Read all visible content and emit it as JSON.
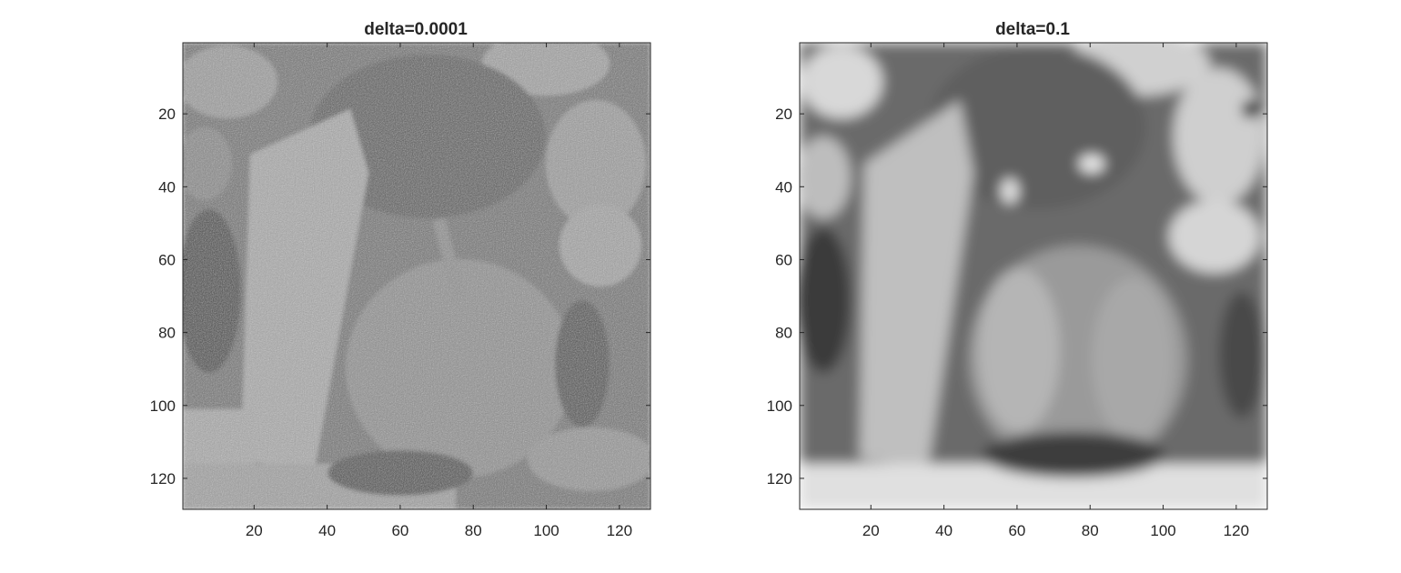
{
  "chart_data": [
    {
      "type": "heatmap",
      "title": "delta=0.0001",
      "xlabel": "",
      "ylabel": "",
      "xlim": [
        0.5,
        128.5
      ],
      "ylim": [
        0.5,
        128.5
      ],
      "y_direction": "reverse",
      "colormap": "gray",
      "grid": false,
      "x_ticks": [
        20,
        40,
        60,
        80,
        100,
        120
      ],
      "y_ticks": [
        20,
        40,
        60,
        80,
        100,
        120
      ],
      "image": "noisy grayscale photograph of peppers (128x128), strong speckle noise"
    },
    {
      "type": "heatmap",
      "title": "delta=0.1",
      "xlabel": "",
      "ylabel": "",
      "xlim": [
        0.5,
        128.5
      ],
      "ylim": [
        0.5,
        128.5
      ],
      "y_direction": "reverse",
      "colormap": "gray",
      "grid": false,
      "x_ticks": [
        20,
        40,
        60,
        80,
        100,
        120
      ],
      "y_ticks": [
        20,
        40,
        60,
        80,
        100,
        120
      ],
      "image": "smoothed grayscale photograph of peppers (128x128), heavily blurred"
    }
  ]
}
